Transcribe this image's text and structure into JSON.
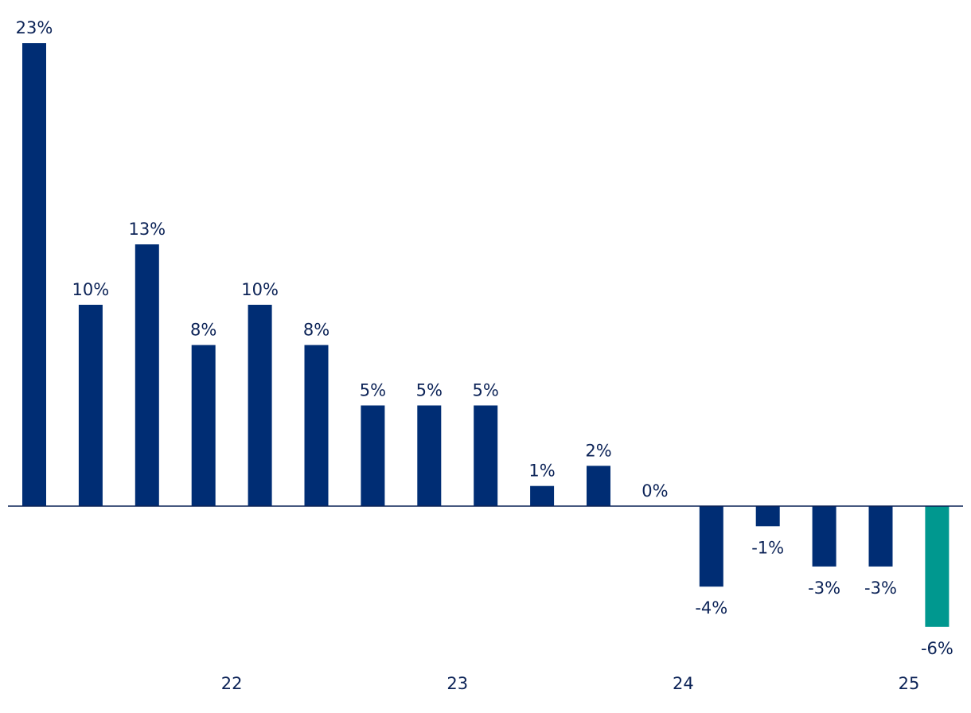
{
  "chart_data": {
    "type": "bar",
    "title": "",
    "xlabel": "",
    "ylabel": "",
    "values": [
      23,
      10,
      13,
      8,
      10,
      8,
      5,
      5,
      5,
      1,
      2,
      0,
      -4,
      -1,
      -3,
      -3,
      -6
    ],
    "value_labels": [
      "23%",
      "10%",
      "13%",
      "8%",
      "10%",
      "8%",
      "5%",
      "5%",
      "5%",
      "1%",
      "2%",
      "0%",
      "-4%",
      "-1%",
      "-3%",
      "-3%",
      "-6%"
    ],
    "highlight_index": 16,
    "x_tick_labels": [
      {
        "label": "22",
        "at": 3.5
      },
      {
        "label": "23",
        "at": 7.5
      },
      {
        "label": "24",
        "at": 11.5
      },
      {
        "label": "25",
        "at": 15.5
      }
    ],
    "ylim": [
      -6.5,
      23.5
    ],
    "grid": false,
    "legend": "none",
    "colors": {
      "bar": "#002d74",
      "highlight": "#00988f",
      "axis": "#0c2357",
      "text": "#0c2357"
    }
  }
}
